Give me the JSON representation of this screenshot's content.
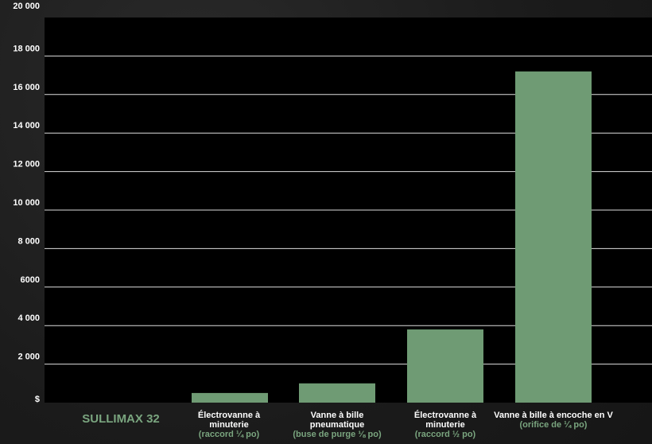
{
  "chart_data": {
    "type": "bar",
    "ylim": [
      0,
      20000
    ],
    "yticks": [
      {
        "value": 0,
        "label": "$"
      },
      {
        "value": 2000,
        "label": "2 000"
      },
      {
        "value": 4000,
        "label": "4 000"
      },
      {
        "value": 6000,
        "label": "6000"
      },
      {
        "value": 8000,
        "label": "8 000"
      },
      {
        "value": 10000,
        "label": "10 000"
      },
      {
        "value": 12000,
        "label": "12 000"
      },
      {
        "value": 14000,
        "label": "14 000"
      },
      {
        "value": 16000,
        "label": "16 000"
      },
      {
        "value": 18000,
        "label": "18 000"
      },
      {
        "value": 20000,
        "label": "20 000"
      }
    ],
    "categories": [
      {
        "lines": [
          "SULLIMAX 32"
        ],
        "sub": "",
        "featured": true
      },
      {
        "lines": [
          "Électrovanne à",
          "minuterie"
        ],
        "sub": "(raccord ¼ po)"
      },
      {
        "lines": [
          "Vanne à bille",
          "pneumatique"
        ],
        "sub": "(buse de purge ⅛ po)"
      },
      {
        "lines": [
          "Électrovanne à",
          "minuterie"
        ],
        "sub": "(raccord ½ po)"
      },
      {
        "lines": [
          "Vanne à bille à encoche en V"
        ],
        "sub": "(orifice de ¼ po)"
      }
    ],
    "values": [
      0,
      500,
      1000,
      3800,
      17200
    ],
    "grid": true,
    "colors": {
      "bar": "#6f9b74",
      "plot_bg": "#000000",
      "grid": "#dddddd",
      "accent": "#7aa57f"
    }
  }
}
